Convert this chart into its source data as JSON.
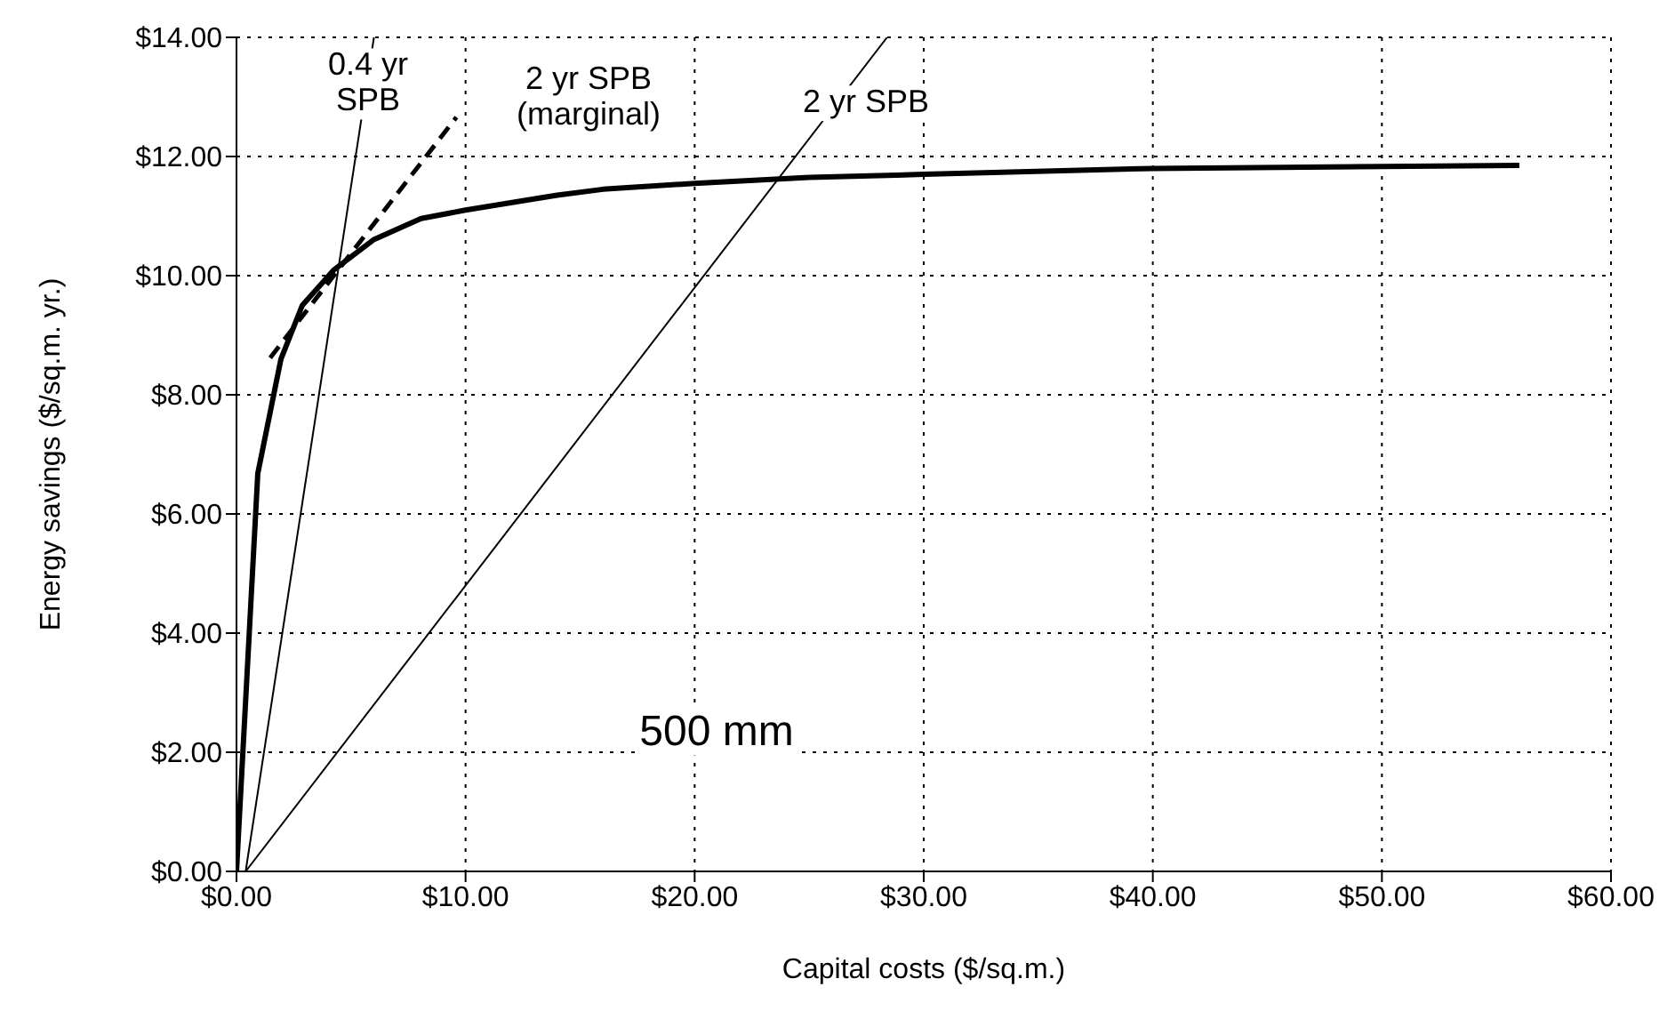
{
  "chart_data": {
    "type": "line",
    "xlabel": "Capital costs ($/sq.m.)",
    "ylabel": "Energy savings ($/sq.m. yr.)",
    "xlim": [
      0,
      60
    ],
    "ylim": [
      0,
      14
    ],
    "xticks": [
      {
        "value": 0,
        "label": "$0.00"
      },
      {
        "value": 10,
        "label": "$10.00"
      },
      {
        "value": 20,
        "label": "$20.00"
      },
      {
        "value": 30,
        "label": "$30.00"
      },
      {
        "value": 40,
        "label": "$40.00"
      },
      {
        "value": 50,
        "label": "$50.00"
      },
      {
        "value": 60,
        "label": "$60.00"
      }
    ],
    "yticks": [
      {
        "value": 0,
        "label": "$0.00"
      },
      {
        "value": 2,
        "label": "$2.00"
      },
      {
        "value": 4,
        "label": "$4.00"
      },
      {
        "value": 6,
        "label": "$6.00"
      },
      {
        "value": 8,
        "label": "$8.00"
      },
      {
        "value": 10,
        "label": "$10.00"
      },
      {
        "value": 12,
        "label": "$12.00"
      },
      {
        "value": 14,
        "label": "$14.00"
      }
    ],
    "grid": true,
    "marker": "none",
    "series": [
      {
        "color": "#000000",
        "line_style": "solid",
        "x": [
          0,
          0.93,
          1.94,
          2.87,
          4.26,
          5.97,
          8.06,
          10,
          14,
          16,
          20,
          25,
          30,
          40,
          56
        ],
        "values": [
          0,
          6.68,
          8.6,
          9.5,
          10.1,
          10.6,
          10.96,
          11.1,
          11.35,
          11.45,
          11.55,
          11.65,
          11.7,
          11.8,
          11.85
        ]
      },
      {
        "color": "#000000",
        "line_style": "solid",
        "x": [
          0.4,
          6.0
        ],
        "values": [
          0,
          14
        ]
      },
      {
        "color": "#000000",
        "line_style": "dashed",
        "x": [
          1.47,
          9.6
        ],
        "values": [
          8.62,
          12.66
        ]
      },
      {
        "color": "#000000",
        "line_style": "solid",
        "x": [
          0.4,
          28.4
        ],
        "values": [
          0,
          14
        ]
      }
    ],
    "annotations": [
      "0.4 yr\nSPB",
      "2 yr SPB\n(marginal)",
      "2 yr SPB",
      "500 mm"
    ]
  }
}
